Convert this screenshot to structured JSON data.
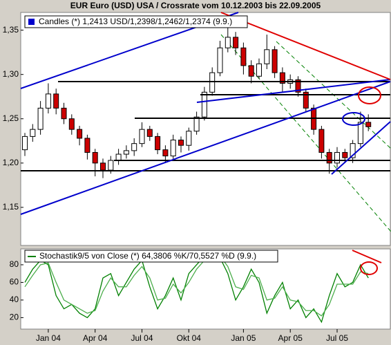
{
  "title": "EUR Euro (USD) USA / Crossrate vom 10.12.2003 bis 22.09.2005",
  "chart_data": [
    {
      "type": "candlestick",
      "legend": "Candles (*) 1,2413 USD/1,2398/1,2462/1,2374 (9.9.)",
      "legend_color": "#0000cc",
      "up_color": "#ffffff",
      "down_color": "#cc0000",
      "categories": [
        null,
        null,
        null,
        "Jan 04",
        null,
        null,
        null,
        null,
        null,
        "Apr 04",
        null,
        null,
        null,
        null,
        null,
        "Jul 04",
        null,
        null,
        null,
        null,
        null,
        "Okt 04",
        null,
        null,
        null,
        null,
        null,
        null,
        "Jan 05",
        null,
        null,
        null,
        null,
        null,
        "Apr 05",
        null,
        null,
        null,
        null,
        null,
        "Jul 05",
        null,
        null,
        null,
        null
      ],
      "open": [
        1.215,
        1.23,
        1.238,
        1.262,
        1.278,
        1.262,
        1.25,
        1.238,
        1.228,
        1.212,
        1.2,
        1.192,
        1.203,
        1.21,
        1.214,
        1.222,
        1.238,
        1.23,
        1.215,
        1.208,
        1.226,
        1.22,
        1.236,
        1.252,
        1.28,
        1.302,
        1.33,
        1.342,
        1.33,
        1.31,
        1.298,
        1.312,
        1.328,
        1.302,
        1.29,
        1.294,
        1.28,
        1.262,
        1.238,
        1.212,
        1.2,
        1.212,
        1.206,
        1.222,
        1.246
      ],
      "high": [
        1.234,
        1.244,
        1.27,
        1.29,
        1.284,
        1.268,
        1.255,
        1.242,
        1.232,
        1.216,
        1.205,
        1.208,
        1.216,
        1.22,
        1.228,
        1.246,
        1.242,
        1.234,
        1.22,
        1.232,
        1.23,
        1.24,
        1.258,
        1.286,
        1.308,
        1.338,
        1.365,
        1.348,
        1.336,
        1.316,
        1.318,
        1.345,
        1.332,
        1.308,
        1.3,
        1.298,
        1.284,
        1.266,
        1.242,
        1.216,
        1.218,
        1.216,
        1.226,
        1.258,
        1.255
      ],
      "low": [
        1.208,
        1.224,
        1.232,
        1.256,
        1.255,
        1.244,
        1.232,
        1.22,
        1.204,
        1.185,
        1.183,
        1.188,
        1.198,
        1.205,
        1.208,
        1.218,
        1.225,
        1.21,
        1.2,
        1.203,
        1.212,
        1.214,
        1.232,
        1.248,
        1.276,
        1.298,
        1.325,
        1.322,
        1.3,
        1.29,
        1.295,
        1.306,
        1.296,
        1.28,
        1.284,
        1.275,
        1.258,
        1.232,
        1.205,
        1.188,
        1.195,
        1.2,
        1.2,
        1.218,
        1.236
      ],
      "close": [
        1.23,
        1.238,
        1.262,
        1.278,
        1.262,
        1.25,
        1.238,
        1.228,
        1.212,
        1.2,
        1.192,
        1.203,
        1.21,
        1.214,
        1.222,
        1.238,
        1.23,
        1.215,
        1.208,
        1.226,
        1.22,
        1.236,
        1.252,
        1.28,
        1.302,
        1.33,
        1.342,
        1.33,
        1.31,
        1.298,
        1.312,
        1.328,
        1.302,
        1.29,
        1.294,
        1.28,
        1.262,
        1.238,
        1.212,
        1.2,
        1.212,
        1.206,
        1.222,
        1.246,
        1.241
      ],
      "ylim": [
        1.107,
        1.37
      ],
      "yticks": [
        {
          "value": 1.15,
          "label": "1,15"
        },
        {
          "value": 1.2,
          "label": "1,20"
        },
        {
          "value": 1.25,
          "label": "1,25"
        },
        {
          "value": 1.3,
          "label": "1,30"
        },
        {
          "value": 1.35,
          "label": "1,35"
        }
      ]
    },
    {
      "type": "line",
      "legend": "Stochastik9/5 von Close (*) 64,3806 %K/70,5527 %D (9.9.)",
      "series": [
        {
          "color": "#008000",
          "values": [
            60,
            75,
            85,
            80,
            45,
            30,
            35,
            25,
            20,
            30,
            65,
            70,
            45,
            60,
            75,
            85,
            55,
            30,
            45,
            65,
            40,
            70,
            80,
            90,
            92,
            88,
            70,
            40,
            55,
            75,
            60,
            25,
            45,
            60,
            30,
            40,
            20,
            30,
            15,
            45,
            70,
            55,
            60,
            80,
            65
          ]
        },
        {
          "color": "#4cae4c",
          "values": [
            55,
            68,
            80,
            82,
            60,
            40,
            35,
            30,
            25,
            28,
            50,
            65,
            55,
            55,
            68,
            78,
            65,
            40,
            42,
            58,
            48,
            60,
            75,
            85,
            90,
            90,
            78,
            55,
            52,
            68,
            65,
            40,
            42,
            55,
            40,
            38,
            28,
            28,
            22,
            35,
            58,
            58,
            58,
            72,
            70
          ]
        }
      ],
      "ylim": [
        7,
        98
      ],
      "yticks": [
        20,
        40,
        60,
        80
      ]
    }
  ]
}
